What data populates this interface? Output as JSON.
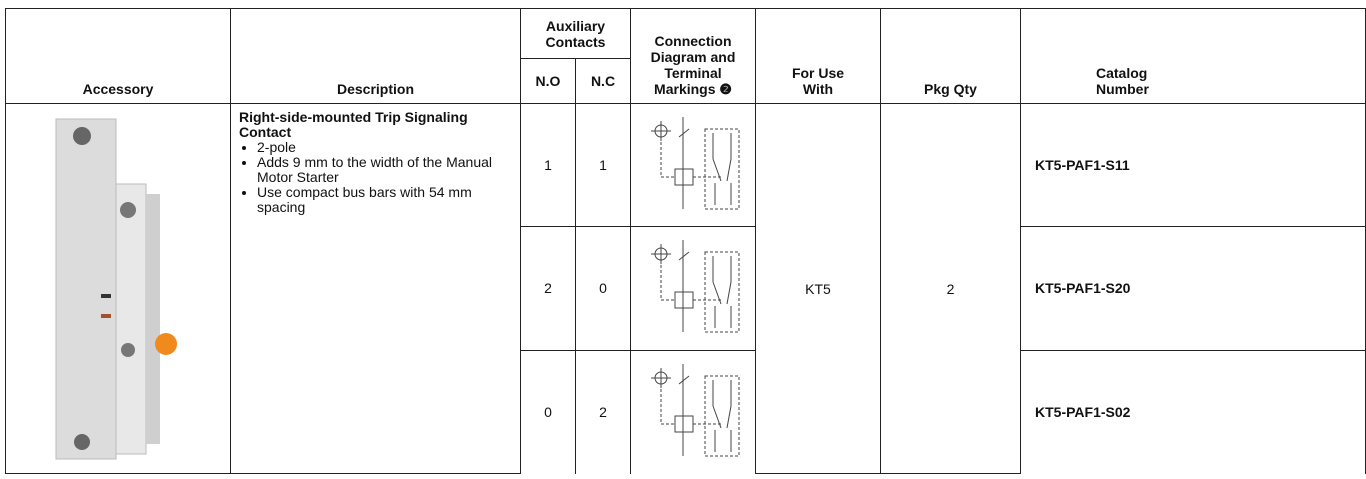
{
  "table": {
    "header": {
      "accessory": "Accessory",
      "description": "Description",
      "auxiliary": "Auxiliary Contacts",
      "no": "N.O",
      "nc": "N.C",
      "diagram": "Connection Diagram and Terminal Markings ❷",
      "for_use": "For Use With",
      "pkg_qty": "Pkg Qty",
      "catalog": "Catalog Number"
    },
    "description": {
      "title": "Right-side-mounted Trip Signaling Contact",
      "bullets": [
        "2-pole",
        "Adds 9 mm to the width of the Manual Motor Starter",
        "Use compact bus bars with 54 mm spacing"
      ]
    },
    "for_use": "KT5",
    "pkg_qty": 2,
    "rows": [
      {
        "no": 1,
        "nc": 1,
        "catalog": "KT5-PAF1-S11"
      },
      {
        "no": 2,
        "nc": 0,
        "catalog": "KT5-PAF1-S20"
      },
      {
        "no": 0,
        "nc": 2,
        "catalog": "KT5-PAF1-S02"
      }
    ]
  }
}
